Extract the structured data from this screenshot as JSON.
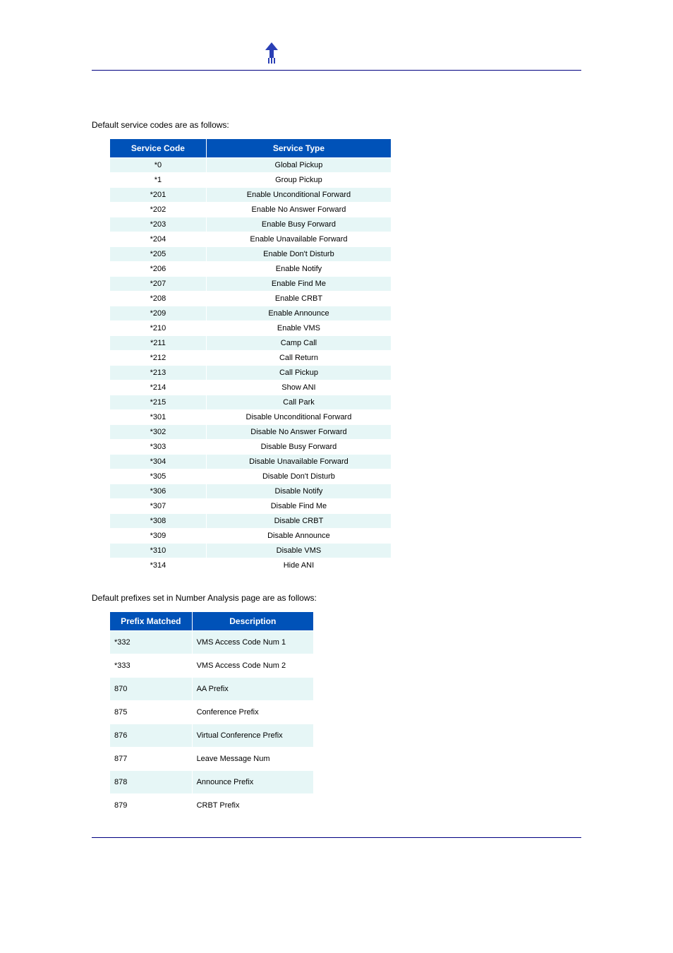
{
  "colors": {
    "header_bg": "#0052b8",
    "header_text": "#ffffff",
    "row_even_bg": "#e6f6f6",
    "row_odd_bg": "#ffffff",
    "rule_color": "#000080",
    "logo_color": "#2a3fb5"
  },
  "intro1": "Default service codes are as follows:",
  "table1": {
    "columns": [
      "Service Code",
      "Service Type"
    ],
    "rows": [
      [
        "*0",
        "Global Pickup"
      ],
      [
        "*1",
        "Group Pickup"
      ],
      [
        "*201",
        "Enable Unconditional Forward"
      ],
      [
        "*202",
        "Enable No Answer Forward"
      ],
      [
        "*203",
        "Enable Busy Forward"
      ],
      [
        "*204",
        "Enable Unavailable Forward"
      ],
      [
        "*205",
        "Enable Don't Disturb"
      ],
      [
        "*206",
        "Enable Notify"
      ],
      [
        "*207",
        "Enable Find Me"
      ],
      [
        "*208",
        "Enable CRBT"
      ],
      [
        "*209",
        "Enable Announce"
      ],
      [
        "*210",
        "Enable VMS"
      ],
      [
        "*211",
        "Camp Call"
      ],
      [
        "*212",
        "Call Return"
      ],
      [
        "*213",
        "Call Pickup"
      ],
      [
        "*214",
        "Show ANI"
      ],
      [
        "*215",
        "Call Park"
      ],
      [
        "*301",
        "Disable Unconditional Forward"
      ],
      [
        "*302",
        "Disable No Answer Forward"
      ],
      [
        "*303",
        "Disable Busy Forward"
      ],
      [
        "*304",
        "Disable Unavailable Forward"
      ],
      [
        "*305",
        "Disable Don't Disturb"
      ],
      [
        "*306",
        "Disable Notify"
      ],
      [
        "*307",
        "Disable Find Me"
      ],
      [
        "*308",
        "Disable CRBT"
      ],
      [
        "*309",
        "Disable Announce"
      ],
      [
        "*310",
        "Disable VMS"
      ],
      [
        "*314",
        "Hide ANI"
      ]
    ]
  },
  "intro2": "Default prefixes set in Number Analysis page are as follows:",
  "table2": {
    "columns": [
      "Prefix Matched",
      "Description"
    ],
    "rows": [
      [
        "*332",
        "VMS Access Code Num 1"
      ],
      [
        "*333",
        "VMS Access Code Num 2"
      ],
      [
        "870",
        "AA Prefix"
      ],
      [
        "875",
        "Conference Prefix"
      ],
      [
        "876",
        "Virtual Conference Prefix"
      ],
      [
        "877",
        "Leave Message Num"
      ],
      [
        "878",
        "Announce Prefix"
      ],
      [
        "879",
        "CRBT Prefix"
      ]
    ]
  }
}
